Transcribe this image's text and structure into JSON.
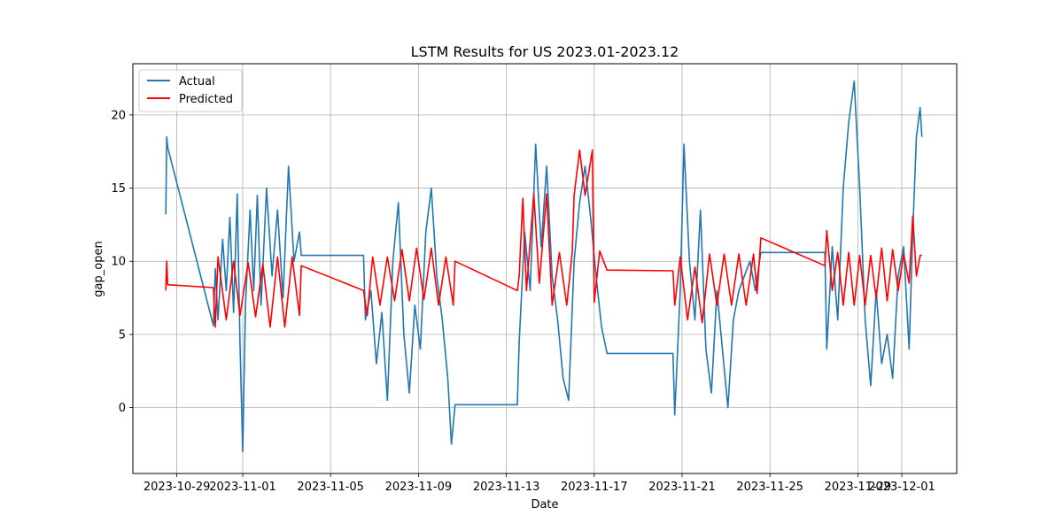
{
  "chart_data": {
    "type": "line",
    "title": "LSTM Results for US 2023.01-2023.12",
    "xlabel": "Date",
    "ylabel": "gap_open",
    "x_range": [
      "2023-10-27T00:00",
      "2023-12-03T12:00"
    ],
    "ylim": [
      -4.5,
      23.5
    ],
    "x_ticks": [
      "2023-10-29",
      "2023-11-01",
      "2023-11-05",
      "2023-11-09",
      "2023-11-13",
      "2023-11-17",
      "2023-11-21",
      "2023-11-25",
      "2023-11-29",
      "2023-12-01"
    ],
    "y_ticks": [
      0,
      5,
      10,
      15,
      20
    ],
    "grid": true,
    "legend_position": "top-left",
    "series": [
      {
        "name": "Actual",
        "color": "#1f77b4",
        "points": [
          [
            "2023-10-28T12:00",
            13.2
          ],
          [
            "2023-10-28T13:00",
            18.5
          ],
          [
            "2023-10-28T14:00",
            17.8
          ],
          [
            "2023-10-30T16:00",
            5.6
          ],
          [
            "2023-10-30T18:00",
            9.5
          ],
          [
            "2023-10-30T21:00",
            6.0
          ],
          [
            "2023-10-31T02:00",
            11.5
          ],
          [
            "2023-10-31T06:00",
            8.0
          ],
          [
            "2023-10-31T10:00",
            13.0
          ],
          [
            "2023-10-31T14:00",
            6.5
          ],
          [
            "2023-10-31T18:00",
            14.6
          ],
          [
            "2023-10-31T21:00",
            4.5
          ],
          [
            "2023-11-01T00:00",
            -3.0
          ],
          [
            "2023-11-01T03:00",
            7.0
          ],
          [
            "2023-11-01T08:00",
            13.5
          ],
          [
            "2023-11-01T12:00",
            8.0
          ],
          [
            "2023-11-01T16:00",
            14.5
          ],
          [
            "2023-11-01T20:00",
            7.0
          ],
          [
            "2023-11-02T02:00",
            15.0
          ],
          [
            "2023-11-02T08:00",
            9.0
          ],
          [
            "2023-11-02T14:00",
            13.5
          ],
          [
            "2023-11-02T20:00",
            7.5
          ],
          [
            "2023-11-03T02:00",
            16.5
          ],
          [
            "2023-11-03T08:00",
            10.0
          ],
          [
            "2023-11-03T14:00",
            12.0
          ],
          [
            "2023-11-03T16:00",
            10.4
          ],
          [
            "2023-11-06T12:00",
            10.4
          ],
          [
            "2023-11-06T14:00",
            6.0
          ],
          [
            "2023-11-06T20:00",
            8.0
          ],
          [
            "2023-11-07T02:00",
            3.0
          ],
          [
            "2023-11-07T08:00",
            6.5
          ],
          [
            "2023-11-07T14:00",
            0.5
          ],
          [
            "2023-11-07T20:00",
            10.0
          ],
          [
            "2023-11-08T02:00",
            14.0
          ],
          [
            "2023-11-08T08:00",
            5.0
          ],
          [
            "2023-11-08T14:00",
            1.0
          ],
          [
            "2023-11-08T20:00",
            7.0
          ],
          [
            "2023-11-09T02:00",
            4.0
          ],
          [
            "2023-11-09T08:00",
            12.0
          ],
          [
            "2023-11-09T14:00",
            15.0
          ],
          [
            "2023-11-09T20:00",
            9.0
          ],
          [
            "2023-11-10T02:00",
            6.0
          ],
          [
            "2023-11-10T08:00",
            2.0
          ],
          [
            "2023-11-10T12:00",
            -2.5
          ],
          [
            "2023-11-10T16:00",
            0.2
          ],
          [
            "2023-11-13T12:00",
            0.2
          ],
          [
            "2023-11-13T14:00",
            4.5
          ],
          [
            "2023-11-13T20:00",
            12.0
          ],
          [
            "2023-11-14T02:00",
            8.0
          ],
          [
            "2023-11-14T08:00",
            18.0
          ],
          [
            "2023-11-14T14:00",
            11.0
          ],
          [
            "2023-11-14T20:00",
            16.5
          ],
          [
            "2023-11-15T02:00",
            9.0
          ],
          [
            "2023-11-15T08:00",
            6.0
          ],
          [
            "2023-11-15T14:00",
            2.0
          ],
          [
            "2023-11-15T20:00",
            0.5
          ],
          [
            "2023-11-16T02:00",
            10.0
          ],
          [
            "2023-11-16T08:00",
            14.0
          ],
          [
            "2023-11-16T14:00",
            16.5
          ],
          [
            "2023-11-16T20:00",
            13.0
          ],
          [
            "2023-11-17T02:00",
            9.0
          ],
          [
            "2023-11-17T08:00",
            5.5
          ],
          [
            "2023-11-17T14:00",
            3.7
          ],
          [
            "2023-11-20T14:00",
            3.7
          ],
          [
            "2023-11-20T16:00",
            -0.5
          ],
          [
            "2023-11-20T22:00",
            8.0
          ],
          [
            "2023-11-21T02:00",
            18.0
          ],
          [
            "2023-11-21T08:00",
            10.0
          ],
          [
            "2023-11-21T14:00",
            6.0
          ],
          [
            "2023-11-21T20:00",
            13.5
          ],
          [
            "2023-11-22T02:00",
            4.0
          ],
          [
            "2023-11-22T08:00",
            1.0
          ],
          [
            "2023-11-22T14:00",
            8.0
          ],
          [
            "2023-11-22T20:00",
            4.0
          ],
          [
            "2023-11-23T02:00",
            0.0
          ],
          [
            "2023-11-23T08:00",
            6.0
          ],
          [
            "2023-11-23T14:00",
            8.0
          ],
          [
            "2023-11-23T20:00",
            9.0
          ],
          [
            "2023-11-24T02:00",
            10.0
          ],
          [
            "2023-11-24T08:00",
            8.0
          ],
          [
            "2023-11-24T14:00",
            10.6
          ],
          [
            "2023-11-27T12:00",
            10.6
          ],
          [
            "2023-11-27T14:00",
            4.0
          ],
          [
            "2023-11-27T20:00",
            11.0
          ],
          [
            "2023-11-28T02:00",
            6.0
          ],
          [
            "2023-11-28T08:00",
            15.0
          ],
          [
            "2023-11-28T14:00",
            19.5
          ],
          [
            "2023-11-28T20:00",
            22.3
          ],
          [
            "2023-11-29T02:00",
            15.0
          ],
          [
            "2023-11-29T08:00",
            6.0
          ],
          [
            "2023-11-29T14:00",
            1.5
          ],
          [
            "2023-11-29T20:00",
            8.0
          ],
          [
            "2023-11-30T02:00",
            3.0
          ],
          [
            "2023-11-30T08:00",
            5.0
          ],
          [
            "2023-11-30T14:00",
            2.0
          ],
          [
            "2023-11-30T20:00",
            9.0
          ],
          [
            "2023-12-01T02:00",
            11.0
          ],
          [
            "2023-12-01T08:00",
            4.0
          ],
          [
            "2023-12-01T12:00",
            12.0
          ],
          [
            "2023-12-01T16:00",
            18.5
          ],
          [
            "2023-12-01T20:00",
            20.5
          ],
          [
            "2023-12-01T22:00",
            18.5
          ]
        ]
      },
      {
        "name": "Predicted",
        "color": "#ff0000",
        "points": [
          [
            "2023-10-28T12:00",
            8.0
          ],
          [
            "2023-10-28T13:00",
            10.0
          ],
          [
            "2023-10-28T14:00",
            8.4
          ],
          [
            "2023-10-30T16:00",
            8.2
          ],
          [
            "2023-10-30T18:00",
            5.5
          ],
          [
            "2023-10-30T21:00",
            10.3
          ],
          [
            "2023-10-31T06:00",
            6.0
          ],
          [
            "2023-10-31T14:00",
            10.0
          ],
          [
            "2023-10-31T21:00",
            6.3
          ],
          [
            "2023-11-01T06:00",
            9.9
          ],
          [
            "2023-11-01T14:00",
            6.2
          ],
          [
            "2023-11-01T22:00",
            9.8
          ],
          [
            "2023-11-02T06:00",
            5.5
          ],
          [
            "2023-11-02T14:00",
            10.3
          ],
          [
            "2023-11-02T22:00",
            5.5
          ],
          [
            "2023-11-03T06:00",
            10.3
          ],
          [
            "2023-11-03T14:00",
            6.3
          ],
          [
            "2023-11-03T16:00",
            9.7
          ],
          [
            "2023-11-06T12:00",
            8.0
          ],
          [
            "2023-11-06T16:00",
            6.3
          ],
          [
            "2023-11-06T22:00",
            10.3
          ],
          [
            "2023-11-07T06:00",
            7.0
          ],
          [
            "2023-11-07T14:00",
            10.3
          ],
          [
            "2023-11-07T22:00",
            7.3
          ],
          [
            "2023-11-08T06:00",
            10.8
          ],
          [
            "2023-11-08T14:00",
            7.3
          ],
          [
            "2023-11-08T22:00",
            10.9
          ],
          [
            "2023-11-09T06:00",
            7.4
          ],
          [
            "2023-11-09T14:00",
            10.9
          ],
          [
            "2023-11-09T22:00",
            7.0
          ],
          [
            "2023-11-10T06:00",
            10.3
          ],
          [
            "2023-11-10T14:00",
            7.0
          ],
          [
            "2023-11-10T16:00",
            10.0
          ],
          [
            "2023-11-13T12:00",
            8.0
          ],
          [
            "2023-11-13T14:00",
            9.0
          ],
          [
            "2023-11-13T18:00",
            14.3
          ],
          [
            "2023-11-13T22:00",
            8.0
          ],
          [
            "2023-11-14T06:00",
            14.6
          ],
          [
            "2023-11-14T12:00",
            8.5
          ],
          [
            "2023-11-14T20:00",
            14.6
          ],
          [
            "2023-11-15T02:00",
            7.0
          ],
          [
            "2023-11-15T10:00",
            10.6
          ],
          [
            "2023-11-15T18:00",
            7.0
          ],
          [
            "2023-11-16T00:00",
            10.6
          ],
          [
            "2023-11-16T02:00",
            14.5
          ],
          [
            "2023-11-16T08:00",
            17.6
          ],
          [
            "2023-11-16T14:00",
            14.5
          ],
          [
            "2023-11-16T22:00",
            17.6
          ],
          [
            "2023-11-17T00:00",
            7.2
          ],
          [
            "2023-11-17T06:00",
            10.7
          ],
          [
            "2023-11-17T14:00",
            9.4
          ],
          [
            "2023-11-20T14:00",
            9.35
          ],
          [
            "2023-11-20T16:00",
            7.0
          ],
          [
            "2023-11-20T22:00",
            10.3
          ],
          [
            "2023-11-21T06:00",
            6.0
          ],
          [
            "2023-11-21T14:00",
            9.6
          ],
          [
            "2023-11-21T22:00",
            5.8
          ],
          [
            "2023-11-22T06:00",
            10.5
          ],
          [
            "2023-11-22T14:00",
            7.0
          ],
          [
            "2023-11-22T22:00",
            10.5
          ],
          [
            "2023-11-23T06:00",
            7.0
          ],
          [
            "2023-11-23T14:00",
            10.5
          ],
          [
            "2023-11-23T22:00",
            7.0
          ],
          [
            "2023-11-24T06:00",
            10.5
          ],
          [
            "2023-11-24T10:00",
            7.8
          ],
          [
            "2023-11-24T14:00",
            11.6
          ],
          [
            "2023-11-27T12:00",
            9.7
          ],
          [
            "2023-11-27T14:00",
            12.1
          ],
          [
            "2023-11-27T20:00",
            8.0
          ],
          [
            "2023-11-28T02:00",
            10.6
          ],
          [
            "2023-11-28T08:00",
            7.0
          ],
          [
            "2023-11-28T14:00",
            10.6
          ],
          [
            "2023-11-28T20:00",
            7.0
          ],
          [
            "2023-11-29T02:00",
            10.4
          ],
          [
            "2023-11-29T08:00",
            7.0
          ],
          [
            "2023-11-29T14:00",
            10.4
          ],
          [
            "2023-11-29T20:00",
            7.5
          ],
          [
            "2023-11-30T02:00",
            10.9
          ],
          [
            "2023-11-30T08:00",
            7.3
          ],
          [
            "2023-11-30T14:00",
            10.8
          ],
          [
            "2023-11-30T20:00",
            8.0
          ],
          [
            "2023-12-01T02:00",
            10.5
          ],
          [
            "2023-12-01T08:00",
            8.5
          ],
          [
            "2023-12-01T12:00",
            13.1
          ],
          [
            "2023-12-01T16:00",
            9.0
          ],
          [
            "2023-12-01T20:00",
            10.4
          ],
          [
            "2023-12-01T22:00",
            10.4
          ]
        ]
      }
    ]
  }
}
